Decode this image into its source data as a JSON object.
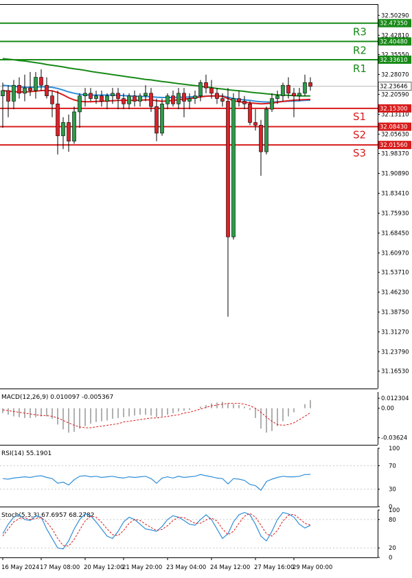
{
  "chart_data": {
    "type": "candlestick",
    "instrument_price_current": "32.23646",
    "colors": {
      "bull": "#2e9a49",
      "bear": "#d9222a",
      "resistance": "#178a17",
      "support": "#d81b1b",
      "ma_fast": "#d81b1b",
      "ma_mid": "#2e8ed8",
      "ma_slow": "#178a17",
      "macd_signal": "#d81b1b",
      "macd_hist": "#b0b0b0",
      "rsi": "#2e8ed8",
      "stoch_main": "#2e8ed8",
      "stoch_signal": "#d81b1b"
    },
    "main": {
      "ylim": [
        31.1,
        32.545
      ],
      "price_ticks": [
        "32.50290",
        "32.42810",
        "32.35550",
        "32.28070",
        "32.20590",
        "32.13110",
        "32.05630",
        "31.98370",
        "31.90890",
        "31.83410",
        "31.75930",
        "31.68450",
        "31.60970",
        "31.53710",
        "31.46230",
        "31.38750",
        "31.31270",
        "31.23790",
        "31.16530"
      ],
      "levels": [
        {
          "name": "R3",
          "value": 32.4735,
          "label": "32.47350",
          "kind": "resistance"
        },
        {
          "name": "R2",
          "value": 32.4048,
          "label": "32.40480",
          "kind": "resistance"
        },
        {
          "name": "R1",
          "value": 32.3361,
          "label": "32.33610",
          "kind": "resistance"
        },
        {
          "name": "S1",
          "value": 32.153,
          "label": "32.15300",
          "kind": "support"
        },
        {
          "name": "S2",
          "value": 32.0843,
          "label": "32.08430",
          "kind": "support"
        },
        {
          "name": "S3",
          "value": 32.0156,
          "label": "32.01560",
          "kind": "support"
        }
      ],
      "current_price": 32.23646,
      "candles": [
        {
          "o": 32.2,
          "h": 32.25,
          "l": 32.08,
          "c": 32.22
        },
        {
          "o": 32.22,
          "h": 32.24,
          "l": 32.12,
          "c": 32.18
        },
        {
          "o": 32.18,
          "h": 32.26,
          "l": 32.15,
          "c": 32.24
        },
        {
          "o": 32.24,
          "h": 32.27,
          "l": 32.19,
          "c": 32.21
        },
        {
          "o": 32.21,
          "h": 32.28,
          "l": 32.18,
          "c": 32.23
        },
        {
          "o": 32.23,
          "h": 32.29,
          "l": 32.2,
          "c": 32.22
        },
        {
          "o": 32.22,
          "h": 32.29,
          "l": 32.19,
          "c": 32.27
        },
        {
          "o": 32.27,
          "h": 32.3,
          "l": 32.22,
          "c": 32.24
        },
        {
          "o": 32.24,
          "h": 32.27,
          "l": 32.19,
          "c": 32.2
        },
        {
          "o": 32.2,
          "h": 32.22,
          "l": 32.12,
          "c": 32.17
        },
        {
          "o": 32.17,
          "h": 32.22,
          "l": 31.98,
          "c": 32.05
        },
        {
          "o": 32.05,
          "h": 32.12,
          "l": 32.0,
          "c": 32.1
        },
        {
          "o": 32.1,
          "h": 32.13,
          "l": 31.99,
          "c": 32.03
        },
        {
          "o": 32.03,
          "h": 32.16,
          "l": 32.02,
          "c": 32.14
        },
        {
          "o": 32.14,
          "h": 32.21,
          "l": 32.08,
          "c": 32.2
        },
        {
          "o": 32.2,
          "h": 32.23,
          "l": 32.16,
          "c": 32.21
        },
        {
          "o": 32.21,
          "h": 32.23,
          "l": 32.18,
          "c": 32.19
        },
        {
          "o": 32.19,
          "h": 32.22,
          "l": 32.17,
          "c": 32.2
        },
        {
          "o": 32.2,
          "h": 32.22,
          "l": 32.16,
          "c": 32.18
        },
        {
          "o": 32.18,
          "h": 32.21,
          "l": 32.15,
          "c": 32.2
        },
        {
          "o": 32.2,
          "h": 32.23,
          "l": 32.17,
          "c": 32.21
        },
        {
          "o": 32.21,
          "h": 32.23,
          "l": 32.15,
          "c": 32.19
        },
        {
          "o": 32.19,
          "h": 32.21,
          "l": 32.15,
          "c": 32.17
        },
        {
          "o": 32.17,
          "h": 32.21,
          "l": 32.15,
          "c": 32.2
        },
        {
          "o": 32.2,
          "h": 32.22,
          "l": 32.16,
          "c": 32.18
        },
        {
          "o": 32.18,
          "h": 32.21,
          "l": 32.16,
          "c": 32.2
        },
        {
          "o": 32.2,
          "h": 32.24,
          "l": 32.18,
          "c": 32.21
        },
        {
          "o": 32.21,
          "h": 32.23,
          "l": 32.14,
          "c": 32.16
        },
        {
          "o": 32.16,
          "h": 32.19,
          "l": 32.03,
          "c": 32.06
        },
        {
          "o": 32.06,
          "h": 32.19,
          "l": 32.05,
          "c": 32.17
        },
        {
          "o": 32.17,
          "h": 32.21,
          "l": 32.15,
          "c": 32.2
        },
        {
          "o": 32.2,
          "h": 32.22,
          "l": 32.16,
          "c": 32.17
        },
        {
          "o": 32.17,
          "h": 32.23,
          "l": 32.15,
          "c": 32.21
        },
        {
          "o": 32.21,
          "h": 32.23,
          "l": 32.12,
          "c": 32.18
        },
        {
          "o": 32.18,
          "h": 32.21,
          "l": 32.15,
          "c": 32.19
        },
        {
          "o": 32.19,
          "h": 32.22,
          "l": 32.17,
          "c": 32.2
        },
        {
          "o": 32.2,
          "h": 32.26,
          "l": 32.18,
          "c": 32.25
        },
        {
          "o": 32.25,
          "h": 32.28,
          "l": 32.21,
          "c": 32.23
        },
        {
          "o": 32.23,
          "h": 32.26,
          "l": 32.19,
          "c": 32.21
        },
        {
          "o": 32.21,
          "h": 32.23,
          "l": 32.17,
          "c": 32.19
        },
        {
          "o": 32.19,
          "h": 32.21,
          "l": 32.16,
          "c": 32.18
        },
        {
          "o": 32.18,
          "h": 32.23,
          "l": 31.37,
          "c": 31.67
        },
        {
          "o": 31.67,
          "h": 32.21,
          "l": 31.66,
          "c": 32.19
        },
        {
          "o": 32.19,
          "h": 32.22,
          "l": 32.16,
          "c": 32.18
        },
        {
          "o": 32.18,
          "h": 32.2,
          "l": 32.15,
          "c": 32.17
        },
        {
          "o": 32.17,
          "h": 32.18,
          "l": 32.09,
          "c": 32.1
        },
        {
          "o": 32.1,
          "h": 32.15,
          "l": 32.07,
          "c": 32.09
        },
        {
          "o": 32.09,
          "h": 32.11,
          "l": 31.9,
          "c": 31.99
        },
        {
          "o": 31.99,
          "h": 32.16,
          "l": 31.98,
          "c": 32.15
        },
        {
          "o": 32.15,
          "h": 32.21,
          "l": 32.14,
          "c": 32.19
        },
        {
          "o": 32.19,
          "h": 32.22,
          "l": 32.17,
          "c": 32.2
        },
        {
          "o": 32.2,
          "h": 32.25,
          "l": 32.18,
          "c": 32.24
        },
        {
          "o": 32.24,
          "h": 32.27,
          "l": 32.19,
          "c": 32.21
        },
        {
          "o": 32.21,
          "h": 32.23,
          "l": 32.12,
          "c": 32.2
        },
        {
          "o": 32.2,
          "h": 32.23,
          "l": 32.18,
          "c": 32.21
        },
        {
          "o": 32.21,
          "h": 32.28,
          "l": 32.2,
          "c": 32.25
        },
        {
          "o": 32.25,
          "h": 32.27,
          "l": 32.22,
          "c": 32.236
        }
      ],
      "ma_slow": [
        32.34,
        32.338,
        32.336,
        32.333,
        32.331,
        32.328,
        32.325,
        32.322,
        32.318,
        32.315,
        32.312,
        32.309,
        32.305,
        32.302,
        32.299,
        32.296,
        32.292,
        32.289,
        32.286,
        32.283,
        32.28,
        32.277,
        32.274,
        32.271,
        32.268,
        32.265,
        32.262,
        32.26,
        32.257,
        32.254,
        32.252,
        32.249,
        32.246,
        32.244,
        32.241,
        32.239,
        32.236,
        32.233,
        32.231,
        32.228,
        32.226,
        32.223,
        32.221,
        32.219,
        32.217,
        32.214,
        32.212,
        32.21,
        32.208,
        32.206,
        32.204,
        32.203,
        32.202,
        32.201,
        32.2,
        32.2,
        32.2
      ],
      "ma_mid": [
        32.24,
        32.238,
        32.236,
        32.234,
        32.232,
        32.232,
        32.233,
        32.234,
        32.234,
        32.232,
        32.228,
        32.222,
        32.215,
        32.21,
        32.206,
        32.204,
        32.203,
        32.203,
        32.203,
        32.203,
        32.203,
        32.202,
        32.201,
        32.2,
        32.199,
        32.198,
        32.198,
        32.197,
        32.195,
        32.194,
        32.194,
        32.194,
        32.195,
        32.195,
        32.196,
        32.197,
        32.198,
        32.199,
        32.2,
        32.2,
        32.2,
        32.195,
        32.19,
        32.187,
        32.185,
        32.183,
        32.18,
        32.178,
        32.177,
        32.177,
        32.178,
        32.179,
        32.18,
        32.181,
        32.182,
        32.183,
        32.184
      ],
      "ma_fast": [
        32.22,
        32.218,
        32.216,
        32.215,
        32.215,
        32.216,
        32.218,
        32.22,
        32.221,
        32.219,
        32.213,
        32.204,
        32.193,
        32.185,
        32.18,
        32.178,
        32.178,
        32.179,
        32.18,
        32.181,
        32.182,
        32.183,
        32.183,
        32.183,
        32.183,
        32.184,
        32.185,
        32.185,
        32.182,
        32.18,
        32.181,
        32.183,
        32.186,
        32.188,
        32.19,
        32.193,
        32.196,
        32.199,
        32.2,
        32.2,
        32.198,
        32.19,
        32.182,
        32.178,
        32.176,
        32.174,
        32.172,
        32.17,
        32.171,
        32.173,
        32.176,
        32.179,
        32.182,
        32.184,
        32.185,
        32.186,
        32.187
      ]
    },
    "macd": {
      "label": "MACD(12,26,9) 0.010097 -0.005367",
      "ylim": [
        -0.045,
        0.02
      ],
      "ticks": [
        {
          "v": 0.012304,
          "t": "0.012304"
        },
        {
          "v": 0.0,
          "t": "0.00"
        },
        {
          "v": -0.03624,
          "t": "-0.03624"
        }
      ],
      "hist": [
        -0.006,
        -0.008,
        -0.01,
        -0.011,
        -0.012,
        -0.012,
        -0.011,
        -0.01,
        -0.01,
        -0.013,
        -0.02,
        -0.026,
        -0.03,
        -0.029,
        -0.025,
        -0.022,
        -0.019,
        -0.017,
        -0.016,
        -0.015,
        -0.013,
        -0.012,
        -0.011,
        -0.01,
        -0.009,
        -0.008,
        -0.008,
        -0.009,
        -0.011,
        -0.01,
        -0.008,
        -0.006,
        -0.004,
        -0.003,
        -0.002,
        0.0,
        0.002,
        0.004,
        0.006,
        0.007,
        0.008,
        0.006,
        0.005,
        0.004,
        0.002,
        -0.002,
        -0.012,
        -0.025,
        -0.03,
        -0.028,
        -0.022,
        -0.016,
        -0.01,
        -0.005,
        0.0,
        0.005,
        0.010097
      ],
      "signal": [
        -0.002,
        -0.003,
        -0.004,
        -0.005,
        -0.006,
        -0.007,
        -0.008,
        -0.009,
        -0.009,
        -0.01,
        -0.012,
        -0.015,
        -0.018,
        -0.021,
        -0.023,
        -0.024,
        -0.024,
        -0.023,
        -0.022,
        -0.021,
        -0.02,
        -0.019,
        -0.017,
        -0.016,
        -0.015,
        -0.014,
        -0.013,
        -0.012,
        -0.012,
        -0.011,
        -0.01,
        -0.009,
        -0.008,
        -0.006,
        -0.005,
        -0.003,
        -0.001,
        0.001,
        0.003,
        0.004,
        0.005,
        0.006,
        0.006,
        0.006,
        0.005,
        0.003,
        0.0,
        -0.005,
        -0.011,
        -0.016,
        -0.02,
        -0.021,
        -0.02,
        -0.018,
        -0.014,
        -0.01,
        -0.005367
      ]
    },
    "rsi": {
      "label": "RSI(14) 55.1901",
      "ylim": [
        0,
        100
      ],
      "ticks": [
        {
          "v": 100,
          "t": "100"
        },
        {
          "v": 70,
          "t": "70"
        },
        {
          "v": 30,
          "t": "30"
        },
        {
          "v": 0,
          "t": "0"
        }
      ],
      "values": [
        48,
        47,
        49,
        50,
        51,
        50,
        52,
        53,
        50,
        48,
        40,
        42,
        37,
        46,
        52,
        53,
        51,
        52,
        50,
        51,
        52,
        50,
        49,
        51,
        50,
        51,
        52,
        48,
        40,
        49,
        51,
        49,
        52,
        50,
        51,
        52,
        55,
        53,
        51,
        49,
        48,
        39,
        48,
        47,
        45,
        38,
        36,
        28,
        43,
        47,
        50,
        52,
        51,
        51,
        52,
        55,
        55.19
      ]
    },
    "stoch": {
      "label": "Stoch(5,3,3) 67.6957 68.2782",
      "ylim": [
        0,
        100
      ],
      "ticks": [
        {
          "v": 100,
          "t": "100"
        },
        {
          "v": 80,
          "t": "80"
        },
        {
          "v": 20,
          "t": "20"
        },
        {
          "v": 0,
          "t": "0"
        }
      ],
      "main": [
        50,
        70,
        85,
        90,
        80,
        78,
        88,
        85,
        60,
        40,
        20,
        18,
        35,
        60,
        80,
        92,
        88,
        75,
        60,
        45,
        40,
        55,
        75,
        85,
        80,
        70,
        60,
        58,
        55,
        65,
        80,
        88,
        85,
        78,
        70,
        68,
        80,
        90,
        80,
        60,
        40,
        50,
        75,
        90,
        95,
        90,
        70,
        45,
        35,
        55,
        80,
        95,
        92,
        85,
        70,
        62,
        67.7
      ],
      "signal": [
        45,
        60,
        75,
        82,
        83,
        80,
        82,
        84,
        75,
        60,
        40,
        25,
        24,
        38,
        58,
        77,
        87,
        85,
        74,
        60,
        48,
        46,
        57,
        72,
        80,
        78,
        70,
        63,
        57,
        59,
        67,
        78,
        85,
        84,
        78,
        72,
        72,
        79,
        83,
        77,
        60,
        48,
        55,
        72,
        87,
        93,
        85,
        68,
        50,
        45,
        57,
        77,
        89,
        91,
        82,
        72,
        68.28
      ]
    },
    "time_labels": [
      "16 May 2024",
      "17 May 08:00",
      "20 May 12:00",
      "21 May 20:00",
      "23 May 04:00",
      "24 May 12:00",
      "27 May 16:00",
      "29 May 00:00"
    ],
    "time_label_indices": [
      0,
      7,
      15,
      22,
      30,
      38,
      46,
      53
    ]
  }
}
